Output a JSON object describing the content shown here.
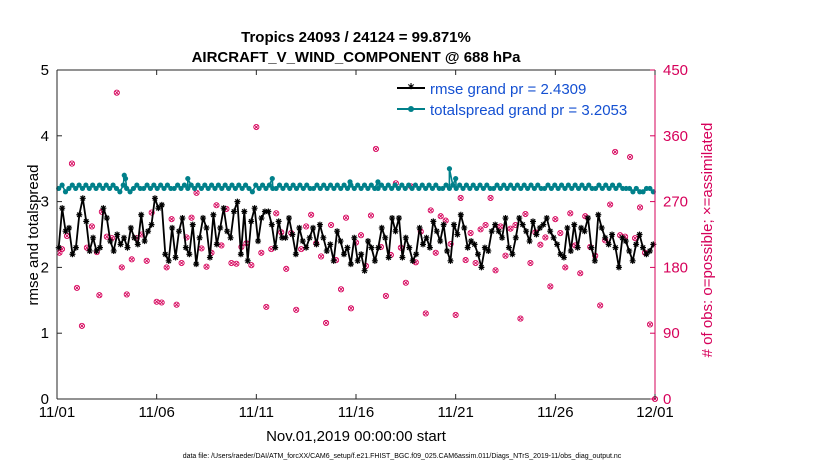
{
  "chart_data": {
    "type": "line",
    "title_line1": "Tropics 24093 / 24124 = 99.871%",
    "title_line2": "AIRCRAFT_V_WIND_COMPONENT @ 688 hPa",
    "xlabel": "Nov.01,2019 00:00:00 start",
    "ylabel_left": "rmse and totalspread",
    "ylabel_right": "# of obs: o=possible; ×=assimilated",
    "footer": "data file: /Users/raeder/DAI/ATM_forcXX/CAM6_setup/f.e21.FHIST_BGC.f09_025.CAM6assim.011/Diags_NTrS_2019-11/obs_diag_output.nc",
    "xlim": [
      0,
      30
    ],
    "x_ticks": [
      0,
      5,
      10,
      15,
      20,
      25,
      30
    ],
    "x_tick_labels": [
      "11/01",
      "11/06",
      "11/11",
      "11/16",
      "11/21",
      "11/26",
      "12/01"
    ],
    "ylim_left": [
      0,
      5
    ],
    "y_ticks_left": [
      0,
      1,
      2,
      3,
      4,
      5
    ],
    "y_tick_labels_left": [
      "0",
      "1",
      "2",
      "3",
      "4",
      "5"
    ],
    "ylim_right": [
      0,
      450
    ],
    "y_ticks_right": [
      0,
      90,
      180,
      270,
      360,
      450
    ],
    "y_tick_labels_right": [
      "0",
      "90",
      "180",
      "270",
      "360",
      "450"
    ],
    "colors": {
      "rmse": "#000000",
      "spread": "#00808a",
      "obs": "#d6005a",
      "legend_text": "#1450d2"
    },
    "series": [
      {
        "name": "rmse grand pr = 2.4309",
        "axis": "left",
        "values": [
          2.3,
          2.9,
          2.55,
          2.6,
          2.2,
          2.3,
          2.8,
          3.05,
          2.7,
          2.25,
          2.45,
          2.25,
          2.3,
          2.9,
          2.75,
          2.4,
          2.25,
          2.5,
          2.35,
          2.45,
          2.3,
          2.6,
          2.45,
          2.35,
          2.8,
          2.4,
          2.55,
          2.65,
          3.05,
          2.9,
          2.95,
          2.2,
          2.1,
          2.6,
          2.15,
          2.55,
          2.75,
          2.3,
          2.2,
          2.65,
          2.05,
          2.45,
          2.75,
          2.6,
          2.15,
          2.8,
          2.35,
          2.6,
          2.9,
          2.55,
          2.45,
          2.85,
          3.0,
          2.2,
          2.85,
          2.1,
          2.7,
          2.9,
          2.4,
          2.75,
          2.85,
          2.85,
          2.65,
          2.3,
          2.7,
          2.45,
          2.45,
          2.75,
          2.5,
          2.2,
          2.6,
          2.4,
          2.3,
          2.45,
          2.6,
          2.35,
          2.65,
          2.45,
          2.25,
          2.35,
          2.1,
          2.55,
          2.4,
          2.2,
          2.3,
          2.05,
          2.45,
          2.1,
          2.2,
          1.95,
          2.4,
          2.3,
          2.1,
          2.3,
          2.6,
          2.45,
          2.15,
          2.75,
          2.55,
          2.75,
          2.15,
          2.45,
          2.3,
          2.1,
          2.2,
          2.6,
          2.35,
          2.45,
          2.3,
          2.7,
          2.55,
          2.4,
          2.65,
          2.25,
          2.1,
          2.65,
          2.5,
          2.8,
          2.6,
          2.3,
          2.4,
          2.35,
          2.2,
          2.0,
          2.3,
          2.25,
          2.55,
          2.65,
          2.55,
          2.45,
          2.75,
          2.3,
          2.2,
          2.45,
          2.75,
          2.65,
          2.55,
          2.4,
          2.7,
          2.5,
          2.6,
          2.65,
          2.75,
          2.55,
          2.45,
          2.35,
          2.2,
          2.15,
          2.6,
          2.25,
          2.65,
          2.3,
          2.6,
          2.55,
          2.75,
          2.3,
          2.1,
          2.8,
          2.6,
          2.45,
          2.35,
          2.5,
          2.3,
          2.0,
          2.45,
          2.4,
          2.25,
          2.1,
          2.35,
          2.5,
          2.3,
          2.2,
          2.25,
          2.35
        ]
      },
      {
        "name": "totalspread grand pr = 3.2053",
        "axis": "left",
        "values": [
          3.2,
          3.25,
          3.15,
          3.2,
          3.25,
          3.2,
          3.25,
          3.2,
          3.25,
          3.2,
          3.25,
          3.2,
          3.25,
          3.2,
          3.25,
          3.2,
          3.25,
          3.2,
          3.15,
          3.25,
          3.2,
          3.15,
          3.2,
          3.25,
          3.2,
          3.2,
          3.25,
          3.2,
          3.25,
          3.2,
          3.25,
          3.2,
          3.25,
          3.2,
          3.2,
          3.25,
          3.2,
          3.25,
          3.2,
          3.25,
          3.2,
          3.25,
          3.2,
          3.25,
          3.2,
          3.25,
          3.2,
          3.25,
          3.2,
          3.25,
          3.2,
          3.25,
          3.2,
          3.25,
          3.2,
          3.25,
          3.2,
          3.15,
          3.25,
          3.2,
          3.25,
          3.2,
          3.25,
          3.2,
          3.2,
          3.25,
          3.2,
          3.25,
          3.2,
          3.25,
          3.2,
          3.25,
          3.2,
          3.25,
          3.2,
          3.2,
          3.25,
          3.2,
          3.25,
          3.2,
          3.25,
          3.2,
          3.25,
          3.2,
          3.25,
          3.2,
          3.25,
          3.2,
          3.25,
          3.2,
          3.25,
          3.2,
          3.25,
          3.2,
          3.2,
          3.25,
          3.2,
          3.25,
          3.2,
          3.25,
          3.2,
          3.25,
          3.2,
          3.25,
          3.2,
          3.25,
          3.2,
          3.25,
          3.2,
          3.25,
          3.2,
          3.25,
          3.2,
          3.2,
          3.25,
          3.2,
          3.25,
          3.2,
          3.25,
          3.2,
          3.25,
          3.2,
          3.25,
          3.2,
          3.25,
          3.2,
          3.25,
          3.2,
          3.2,
          3.25,
          3.2,
          3.25,
          3.2,
          3.25,
          3.2,
          3.25,
          3.2,
          3.25,
          3.2,
          3.25,
          3.2,
          3.25,
          3.2,
          3.2,
          3.25,
          3.2,
          3.25,
          3.2,
          3.25,
          3.2,
          3.25,
          3.2,
          3.25,
          3.2,
          3.25,
          3.2,
          3.25,
          3.2,
          3.2,
          3.25,
          3.2,
          3.25,
          3.2,
          3.25,
          3.2,
          3.25,
          3.2,
          3.2,
          3.2,
          3.15,
          3.2,
          3.15,
          3.15,
          3.2,
          3.2,
          3.15
        ],
        "spikes": [
          [
            3.375,
            3.4
          ],
          [
            3.4375,
            3.35
          ],
          [
            6.5625,
            3.35
          ],
          [
            19.6875,
            3.5
          ],
          [
            20.0,
            3.35
          ],
          [
            10.8,
            3.35
          ],
          [
            14.7,
            3.3
          ],
          [
            16.1,
            3.3
          ]
        ]
      }
    ],
    "obs_counts": {
      "axis": "right",
      "possible": [
        [
          0.125,
          200
        ],
        [
          0.25,
          205
        ],
        [
          0.5,
          223
        ],
        [
          0.75,
          322
        ],
        [
          1.0,
          152
        ],
        [
          1.25,
          100
        ],
        [
          1.5,
          207
        ],
        [
          1.75,
          236
        ],
        [
          2.0,
          201
        ],
        [
          2.125,
          142
        ],
        [
          2.25,
          256
        ],
        [
          2.5,
          222
        ],
        [
          2.75,
          220
        ],
        [
          3.0,
          419
        ],
        [
          3.25,
          180
        ],
        [
          3.5,
          143
        ],
        [
          3.75,
          191
        ],
        [
          4.0,
          220
        ],
        [
          4.25,
          225
        ],
        [
          4.5,
          189
        ],
        [
          4.75,
          255
        ],
        [
          5.0,
          133
        ],
        [
          5.25,
          132
        ],
        [
          5.5,
          180
        ],
        [
          5.75,
          246
        ],
        [
          6.0,
          129
        ],
        [
          6.25,
          186
        ],
        [
          6.5,
          221
        ],
        [
          6.75,
          248
        ],
        [
          7.0,
          282
        ],
        [
          7.25,
          206
        ],
        [
          7.5,
          181
        ],
        [
          7.75,
          200
        ],
        [
          8.0,
          265
        ],
        [
          8.25,
          210
        ],
        [
          8.5,
          260
        ],
        [
          8.75,
          186
        ],
        [
          9.0,
          185
        ],
        [
          9.25,
          208
        ],
        [
          9.5,
          213
        ],
        [
          9.75,
          183
        ],
        [
          10.0,
          372
        ],
        [
          10.25,
          200
        ],
        [
          10.5,
          126
        ],
        [
          10.75,
          205
        ],
        [
          11.0,
          254
        ],
        [
          11.25,
          228
        ],
        [
          11.5,
          178
        ],
        [
          11.75,
          227
        ],
        [
          12.0,
          122
        ],
        [
          12.25,
          205
        ],
        [
          12.5,
          236
        ],
        [
          12.75,
          252
        ],
        [
          13.0,
          213
        ],
        [
          13.25,
          195
        ],
        [
          13.5,
          104
        ],
        [
          13.75,
          238
        ],
        [
          14.0,
          190
        ],
        [
          14.25,
          150
        ],
        [
          14.5,
          248
        ],
        [
          14.75,
          124
        ],
        [
          15.0,
          214
        ],
        [
          15.25,
          224
        ],
        [
          15.5,
          182
        ],
        [
          15.75,
          251
        ],
        [
          16.0,
          342
        ],
        [
          16.25,
          208
        ],
        [
          16.5,
          141
        ],
        [
          16.75,
          197
        ],
        [
          17.0,
          295
        ],
        [
          17.25,
          207
        ],
        [
          17.5,
          159
        ],
        [
          17.75,
          291
        ],
        [
          18.0,
          187
        ],
        [
          18.25,
          229
        ],
        [
          18.5,
          117
        ],
        [
          18.75,
          258
        ],
        [
          19.0,
          200
        ],
        [
          19.25,
          250
        ],
        [
          19.5,
          244
        ],
        [
          19.75,
          212
        ],
        [
          20.0,
          115
        ],
        [
          20.25,
          275
        ],
        [
          20.5,
          190
        ],
        [
          20.75,
          227
        ],
        [
          21.0,
          186
        ],
        [
          21.25,
          232
        ],
        [
          21.5,
          238
        ],
        [
          21.75,
          275
        ],
        [
          22.0,
          176
        ],
        [
          22.25,
          236
        ],
        [
          22.5,
          196
        ],
        [
          22.75,
          233
        ],
        [
          23.0,
          238
        ],
        [
          23.25,
          110
        ],
        [
          23.5,
          253
        ],
        [
          23.75,
          186
        ],
        [
          24.0,
          228
        ],
        [
          24.25,
          211
        ],
        [
          24.5,
          221
        ],
        [
          24.75,
          154
        ],
        [
          25.0,
          246
        ],
        [
          25.25,
          227
        ],
        [
          25.5,
          180
        ],
        [
          25.75,
          254
        ],
        [
          26.0,
          210
        ],
        [
          26.25,
          172
        ],
        [
          26.5,
          250
        ],
        [
          26.75,
          208
        ],
        [
          27.0,
          196
        ],
        [
          27.25,
          128
        ],
        [
          27.5,
          217
        ],
        [
          27.75,
          266
        ],
        [
          28.0,
          338
        ],
        [
          28.25,
          224
        ],
        [
          28.5,
          222
        ],
        [
          28.75,
          331
        ],
        [
          29.0,
          220
        ],
        [
          29.25,
          262
        ],
        [
          29.5,
          200
        ],
        [
          29.75,
          102
        ],
        [
          30.0,
          0
        ]
      ]
    },
    "legend_location": "top-right",
    "grid": false
  }
}
